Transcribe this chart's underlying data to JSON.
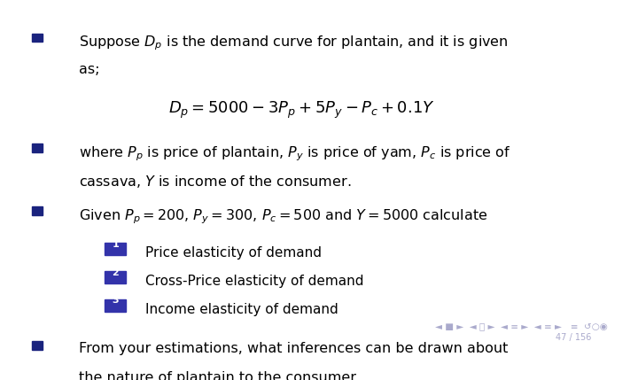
{
  "bg_color": "#ffffff",
  "text_color": "#000000",
  "bullet_color": "#1a237e",
  "num_box_color": "#3333aa",
  "nav_color": "#aaaacc",
  "figsize": [
    7.2,
    4.29
  ],
  "dpi": 100,
  "bullet1_line1": "Suppose $D_p$ is the demand curve for plantain, and it is given",
  "bullet1_line2": "as;",
  "formula": "$D_p = 5000 - 3P_p + 5P_y - P_c + 0.1Y$",
  "bullet2_line1": "where $P_p$ is price of plantain, $P_y$ is price of yam, $P_c$ is price of",
  "bullet2_line2": "cassava, $Y$ is income of the consumer.",
  "bullet3_line1": "Given $P_p = 200$, $P_y = 300$, $P_c = 500$ and $Y = 5000$ calculate",
  "num1_label": "Price elasticity of demand",
  "num2_label": "Cross-Price elasticity of demand",
  "num3_label": "Income elasticity of demand",
  "bullet4_line1": "From your estimations, what inferences can be drawn about",
  "bullet4_line2": "the nature of plantain to the consumer.",
  "page_label": "47 / 156",
  "nav_text": "◄ ■ ►  ◄  ►  ◄ ≡ ►  ◄ ≡ ►   ≡  ↺○◉"
}
